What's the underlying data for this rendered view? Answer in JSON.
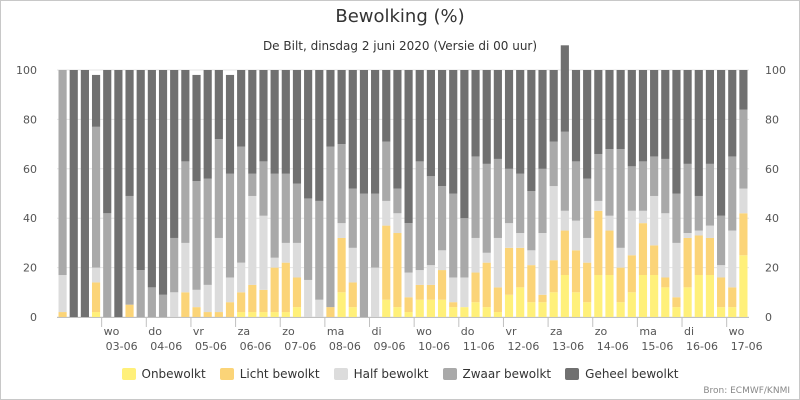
{
  "title": "Bewolking (%)",
  "subtitle": "De Bilt, dinsdag 2 juni 2020 (Versie di 00 uur)",
  "credit": "Bron: ECMWF/KNMI",
  "colors": {
    "Onbewolkt": "#fff07a",
    "Licht bewolkt": "#fbd478",
    "Half bewolkt": "#dcdcdc",
    "Zwaar bewolkt": "#a9a9a9",
    "Geheel bewolkt": "#707070"
  },
  "chart_data": {
    "type": "bar",
    "stacked": true,
    "ylim": [
      0,
      100
    ],
    "yticks": [
      0,
      20,
      40,
      60,
      80,
      100
    ],
    "grid": true,
    "legend_position": "bottom",
    "x_day_labels": [
      {
        "day": "wo",
        "date": "03-06",
        "index": 4
      },
      {
        "day": "do",
        "date": "04-06",
        "index": 8
      },
      {
        "day": "vr",
        "date": "05-06",
        "index": 12
      },
      {
        "day": "za",
        "date": "06-06",
        "index": 16
      },
      {
        "day": "zo",
        "date": "07-06",
        "index": 20
      },
      {
        "day": "ma",
        "date": "08-06",
        "index": 24
      },
      {
        "day": "di",
        "date": "09-06",
        "index": 28
      },
      {
        "day": "wo",
        "date": "10-06",
        "index": 32
      },
      {
        "day": "do",
        "date": "11-06",
        "index": 36
      },
      {
        "day": "vr",
        "date": "12-06",
        "index": 40
      },
      {
        "day": "za",
        "date": "13-06",
        "index": 44
      },
      {
        "day": "zo",
        "date": "14-06",
        "index": 48
      },
      {
        "day": "ma",
        "date": "15-06",
        "index": 52
      },
      {
        "day": "di",
        "date": "16-06",
        "index": 56
      },
      {
        "day": "wo",
        "date": "17-06",
        "index": 60
      }
    ],
    "series": [
      {
        "name": "Onbewolkt",
        "values": [
          0,
          0,
          0,
          2,
          0,
          0,
          0,
          0,
          0,
          0,
          0,
          0,
          0,
          0,
          0,
          0,
          2,
          2,
          2,
          2,
          2,
          4,
          0,
          0,
          0,
          10,
          4,
          0,
          0,
          7,
          4,
          2,
          7,
          7,
          7,
          4,
          4,
          6,
          4,
          2,
          9,
          12,
          6,
          6,
          10,
          17,
          10,
          6,
          17,
          17,
          6,
          10,
          17,
          17,
          12,
          4,
          12,
          17,
          17,
          4,
          4,
          25
        ]
      },
      {
        "name": "Licht bewolkt",
        "values": [
          2,
          0,
          0,
          12,
          0,
          0,
          5,
          0,
          0,
          0,
          0,
          10,
          4,
          2,
          2,
          6,
          8,
          11,
          9,
          18,
          20,
          12,
          0,
          0,
          4,
          22,
          10,
          0,
          0,
          30,
          30,
          6,
          6,
          6,
          12,
          2,
          0,
          12,
          18,
          10,
          19,
          16,
          15,
          3,
          13,
          18,
          17,
          16,
          26,
          18,
          14,
          15,
          21,
          12,
          4,
          4,
          20,
          16,
          15,
          12,
          8,
          17
        ]
      },
      {
        "name": "Half bewolkt",
        "values": [
          15,
          0,
          0,
          6,
          0,
          0,
          0,
          0,
          0,
          0,
          10,
          20,
          7,
          11,
          30,
          10,
          12,
          36,
          30,
          4,
          8,
          14,
          15,
          7,
          0,
          6,
          14,
          0,
          20,
          10,
          8,
          10,
          6,
          8,
          8,
          10,
          12,
          14,
          4,
          20,
          10,
          6,
          6,
          25,
          30,
          8,
          12,
          10,
          4,
          6,
          8,
          18,
          5,
          20,
          26,
          22,
          2,
          2,
          5,
          5,
          23,
          10
        ]
      },
      {
        "name": "Zwaar bewolkt",
        "values": [
          83,
          0,
          0,
          57,
          42,
          0,
          44,
          19,
          12,
          9,
          22,
          33,
          44,
          43,
          40,
          42,
          47,
          9,
          22,
          34,
          28,
          24,
          33,
          40,
          65,
          32,
          24,
          50,
          30,
          24,
          10,
          20,
          44,
          36,
          26,
          34,
          24,
          33,
          36,
          32,
          22,
          24,
          24,
          26,
          18,
          32,
          24,
          24,
          19,
          27,
          40,
          18,
          20,
          16,
          22,
          20,
          28,
          14,
          25,
          20,
          30,
          32
        ]
      },
      {
        "name": "Geheel bewolkt",
        "values": [
          0,
          100,
          100,
          21,
          58,
          100,
          51,
          81,
          88,
          91,
          68,
          37,
          43,
          44,
          28,
          40,
          31,
          42,
          37,
          42,
          42,
          46,
          52,
          53,
          31,
          30,
          48,
          50,
          50,
          29,
          48,
          62,
          37,
          43,
          47,
          50,
          60,
          35,
          38,
          36,
          40,
          42,
          49,
          40,
          29,
          35,
          37,
          44,
          34,
          32,
          32,
          39,
          37,
          35,
          36,
          50,
          38,
          51,
          38,
          59,
          35,
          16
        ]
      }
    ]
  }
}
